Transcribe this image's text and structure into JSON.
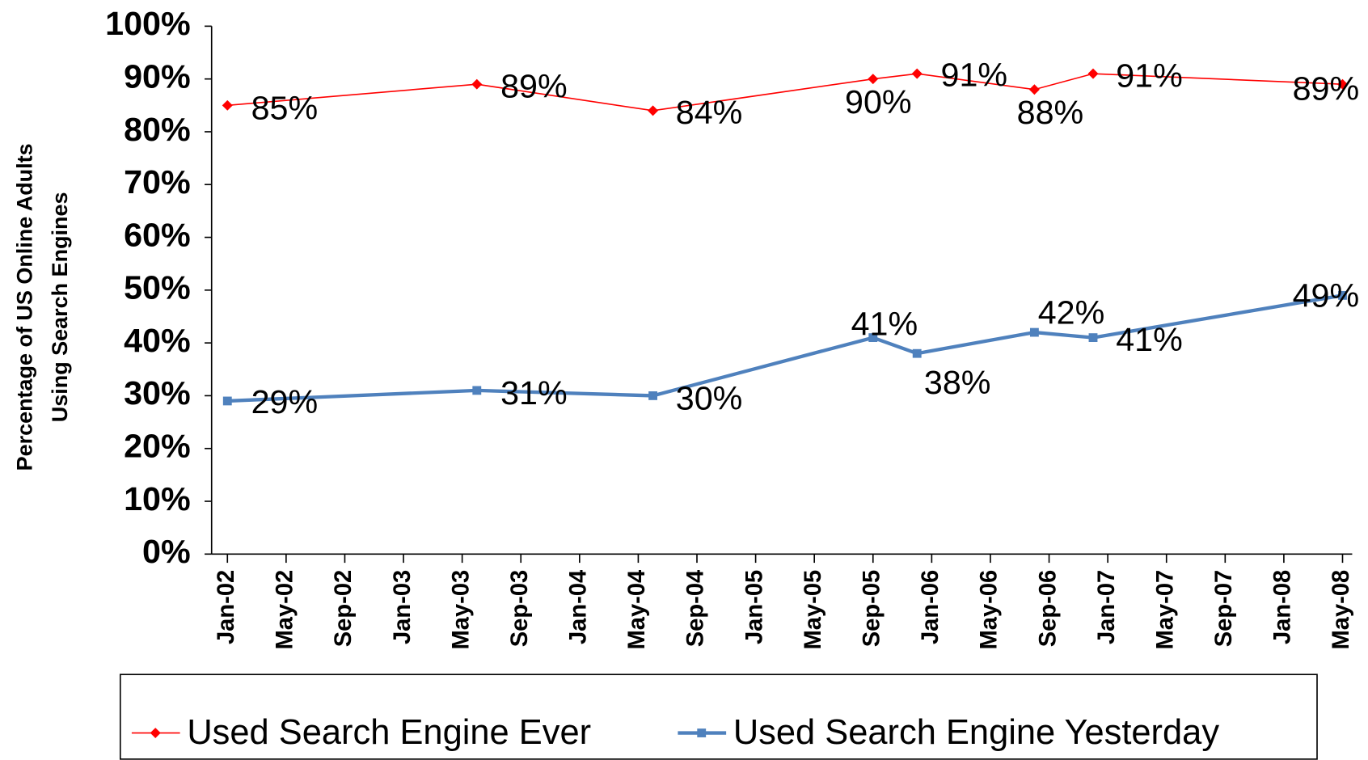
{
  "chart_data": {
    "type": "line",
    "ylabel": [
      "Percentage of US Online Adults",
      "Using Search Engines"
    ],
    "xticks": [
      {
        "value": "2002-01",
        "label": "Jan-02"
      },
      {
        "value": "2002-05",
        "label": "May-02"
      },
      {
        "value": "2002-09",
        "label": "Sep-02"
      },
      {
        "value": "2003-01",
        "label": "Jan-03"
      },
      {
        "value": "2003-05",
        "label": "May-03"
      },
      {
        "value": "2003-09",
        "label": "Sep-03"
      },
      {
        "value": "2004-01",
        "label": "Jan-04"
      },
      {
        "value": "2004-05",
        "label": "May-04"
      },
      {
        "value": "2004-09",
        "label": "Sep-04"
      },
      {
        "value": "2005-01",
        "label": "Jan-05"
      },
      {
        "value": "2005-05",
        "label": "May-05"
      },
      {
        "value": "2005-09",
        "label": "Sep-05"
      },
      {
        "value": "2006-01",
        "label": "Jan-06"
      },
      {
        "value": "2006-05",
        "label": "May-06"
      },
      {
        "value": "2006-09",
        "label": "Sep-06"
      },
      {
        "value": "2007-01",
        "label": "Jan-07"
      },
      {
        "value": "2007-05",
        "label": "May-07"
      },
      {
        "value": "2007-09",
        "label": "Sep-07"
      },
      {
        "value": "2008-01",
        "label": "Jan-08"
      },
      {
        "value": "2008-05",
        "label": "May-08"
      }
    ],
    "xlim": [
      "2002-01",
      "2008-05"
    ],
    "x": [
      "2002-01",
      "2003-06",
      "2004-06",
      "2005-09",
      "2005-12",
      "2006-08",
      "2006-12",
      "2008-05"
    ],
    "ylim": [
      0,
      100
    ],
    "yticks": [
      {
        "value": 0,
        "label": "0%"
      },
      {
        "value": 10,
        "label": "10%"
      },
      {
        "value": 20,
        "label": "20%"
      },
      {
        "value": 30,
        "label": "30%"
      },
      {
        "value": 40,
        "label": "40%"
      },
      {
        "value": 50,
        "label": "50%"
      },
      {
        "value": 60,
        "label": "60%"
      },
      {
        "value": 70,
        "label": "70%"
      },
      {
        "value": 80,
        "label": "80%"
      },
      {
        "value": 90,
        "label": "90%"
      },
      {
        "value": 100,
        "label": "100%"
      }
    ],
    "series": [
      {
        "name": "Used Search Engine Ever",
        "color": "#ff0000",
        "marker": "diamond",
        "values": [
          85,
          89,
          84,
          90,
          91,
          88,
          91,
          89
        ],
        "value_labels": [
          "85%",
          "89%",
          "84%",
          "90%",
          "91%",
          "88%",
          "91%",
          "89%"
        ]
      },
      {
        "name": "Used Search Engine Yesterday",
        "color": "#4f81bd",
        "marker": "square",
        "values": [
          29,
          31,
          30,
          41,
          38,
          42,
          41,
          49
        ],
        "value_labels": [
          "29%",
          "31%",
          "30%",
          "41%",
          "38%",
          "42%",
          "41%",
          "49%"
        ]
      }
    ],
    "legend": "bottom"
  }
}
